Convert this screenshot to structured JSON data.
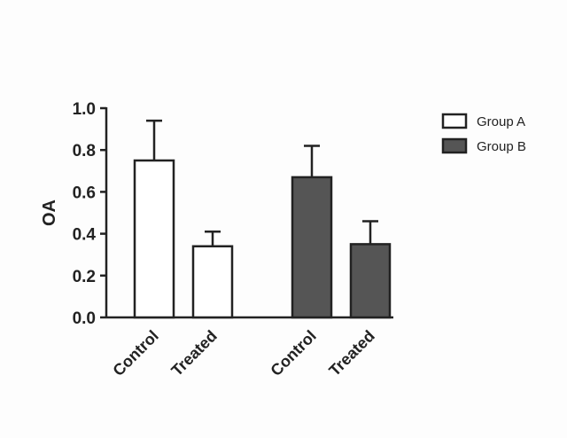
{
  "chart_data": {
    "type": "bar",
    "ylabel": "OA",
    "ylim": [
      0,
      1.0
    ],
    "yticks": [
      "0.0",
      "0.2",
      "0.4",
      "0.6",
      "0.8",
      "1.0"
    ],
    "legend_position": "top-right",
    "series": [
      {
        "name": "Group A",
        "color": "#ffffff",
        "categories": [
          "Control",
          "Treated"
        ],
        "values": [
          0.75,
          0.34
        ],
        "errors": [
          0.19,
          0.07
        ]
      },
      {
        "name": "Group B",
        "color": "#555555",
        "categories": [
          "Control",
          "Treated"
        ],
        "values": [
          0.67,
          0.35
        ],
        "errors": [
          0.15,
          0.11
        ]
      }
    ]
  }
}
